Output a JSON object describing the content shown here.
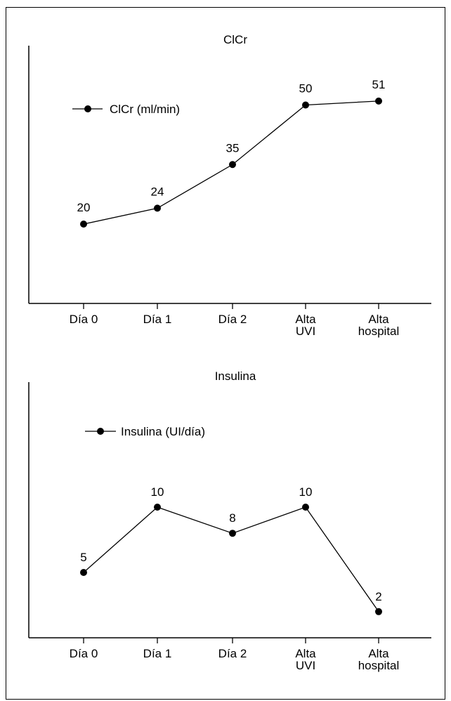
{
  "chart_data": [
    {
      "type": "line",
      "title": "ClCr",
      "categories": [
        "Día 0",
        "Día 1",
        "Día 2",
        "Alta UVI",
        "Alta hospital"
      ],
      "series": [
        {
          "name": "ClCr (ml/min)",
          "values": [
            20,
            24,
            35,
            50,
            51
          ]
        }
      ],
      "data_labels": [
        "20",
        "24",
        "35",
        "50",
        "51"
      ],
      "ylim": [
        0,
        65
      ],
      "grid": false,
      "legend_position": "top-left",
      "colors": {
        "line": "#000000",
        "marker": "#000000"
      }
    },
    {
      "type": "line",
      "title": "Insulina",
      "categories": [
        "Día 0",
        "Día 1",
        "Día 2",
        "Alta UVI",
        "Alta hospital"
      ],
      "series": [
        {
          "name": "Insulina (UI/día)",
          "values": [
            5,
            10,
            8,
            10,
            2
          ]
        }
      ],
      "data_labels": [
        "5",
        "10",
        "8",
        "10",
        "2"
      ],
      "ylim": [
        0,
        14
      ],
      "grid": false,
      "legend_position": "top-left",
      "colors": {
        "line": "#000000",
        "marker": "#000000"
      }
    }
  ]
}
